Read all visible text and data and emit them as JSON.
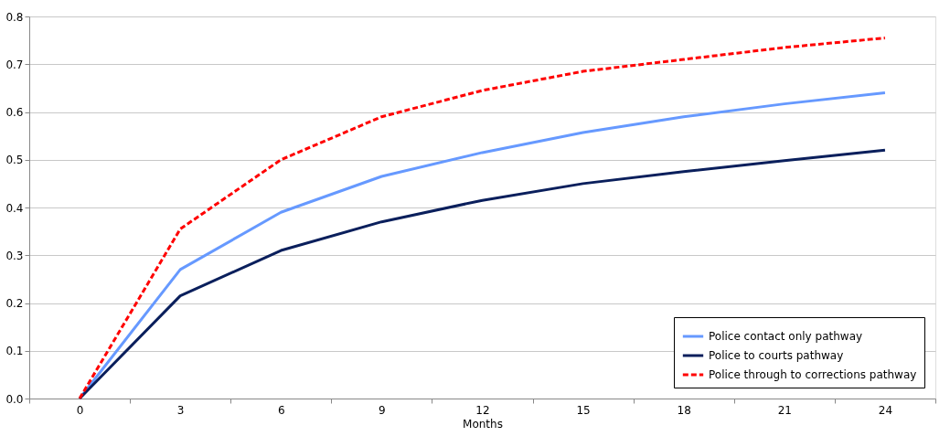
{
  "chart_data": {
    "type": "line",
    "xlabel": "Months",
    "categories": [
      "0",
      "3",
      "6",
      "9",
      "12",
      "15",
      "18",
      "21",
      "24"
    ],
    "ylim": [
      0,
      0.8
    ],
    "yticks": [
      {
        "value": 0,
        "label": "0.0"
      },
      0.1,
      0.2,
      0.3,
      0.4,
      0.5,
      0.6,
      0.7,
      0.8
    ],
    "grid": "y",
    "legend": "bottom right",
    "marker": "none",
    "series": [
      {
        "name": "Police contact only pathway",
        "color": "#6699ff",
        "line_style": "solid",
        "values": [
          0,
          0.27,
          0.39,
          0.465,
          0.515,
          0.557,
          0.59,
          0.617,
          0.64
        ]
      },
      {
        "name": "Police to courts pathway",
        "color": "#0a1f5c",
        "line_style": "solid",
        "values": [
          0,
          0.215,
          0.31,
          0.37,
          0.415,
          0.45,
          0.475,
          0.498,
          0.52
        ]
      },
      {
        "name": "Police through to corrections pathway",
        "color": "#ff0000",
        "line_style": "dashed",
        "values": [
          0,
          0.355,
          0.5,
          0.59,
          0.645,
          0.685,
          0.71,
          0.735,
          0.755
        ]
      }
    ]
  }
}
